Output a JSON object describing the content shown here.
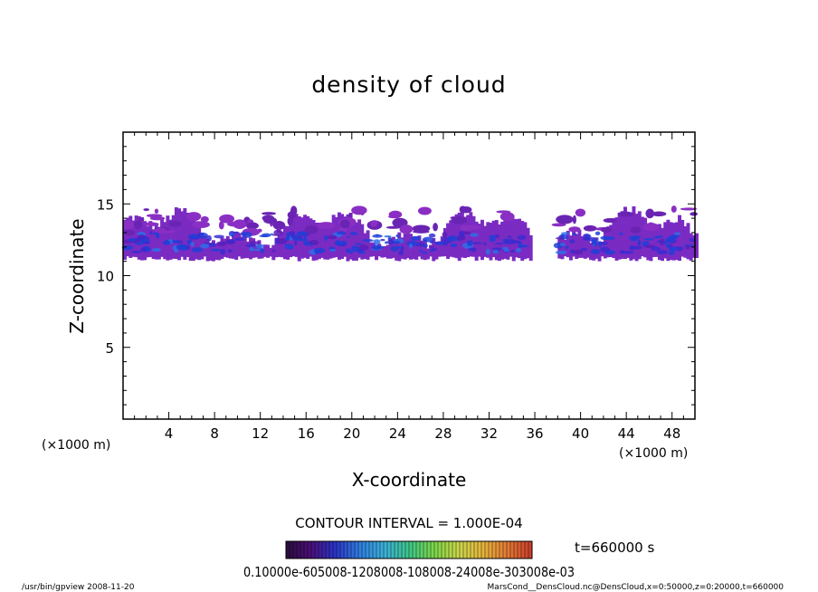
{
  "chart_data": {
    "type": "heatmap",
    "title": "density of cloud",
    "xlabel": "X-coordinate",
    "ylabel": "Z-coordinate",
    "x_unit": "(×1000 m)",
    "y_unit": "(×1000 m)",
    "xlim": [
      0,
      50
    ],
    "ylim": [
      0,
      20
    ],
    "x_ticks": [
      "4",
      "8",
      "12",
      "16",
      "20",
      "24",
      "28",
      "32",
      "36",
      "40",
      "44",
      "48"
    ],
    "y_ticks": [
      "5",
      "10",
      "15"
    ],
    "contour_interval": "CONTOUR INTERVAL = 1.000E-04",
    "time": "t=660000 s",
    "colorbar_label": "0.10000e-605008-1208008-108008-24008e-303008e-03",
    "colormap": [
      "#2a0d3b",
      "#4b0f7a",
      "#2a34c7",
      "#2f7fe0",
      "#3bb0d8",
      "#3ec68a",
      "#7bd64a",
      "#c9d74a",
      "#e6b53c",
      "#e37a34",
      "#c93b2b"
    ],
    "cloud_layer": {
      "z_range": [
        11,
        14.5
      ],
      "gap_x": [
        35.5,
        38
      ],
      "dominant_color": "#7a2bc2",
      "dense_color": "#1f3fd8"
    },
    "footer_left": "/usr/bin/gpview  2008-11-20",
    "footer_right": "MarsCond__DensCloud.nc@DensCloud,x=0:50000,z=0:20000,t=660000"
  }
}
